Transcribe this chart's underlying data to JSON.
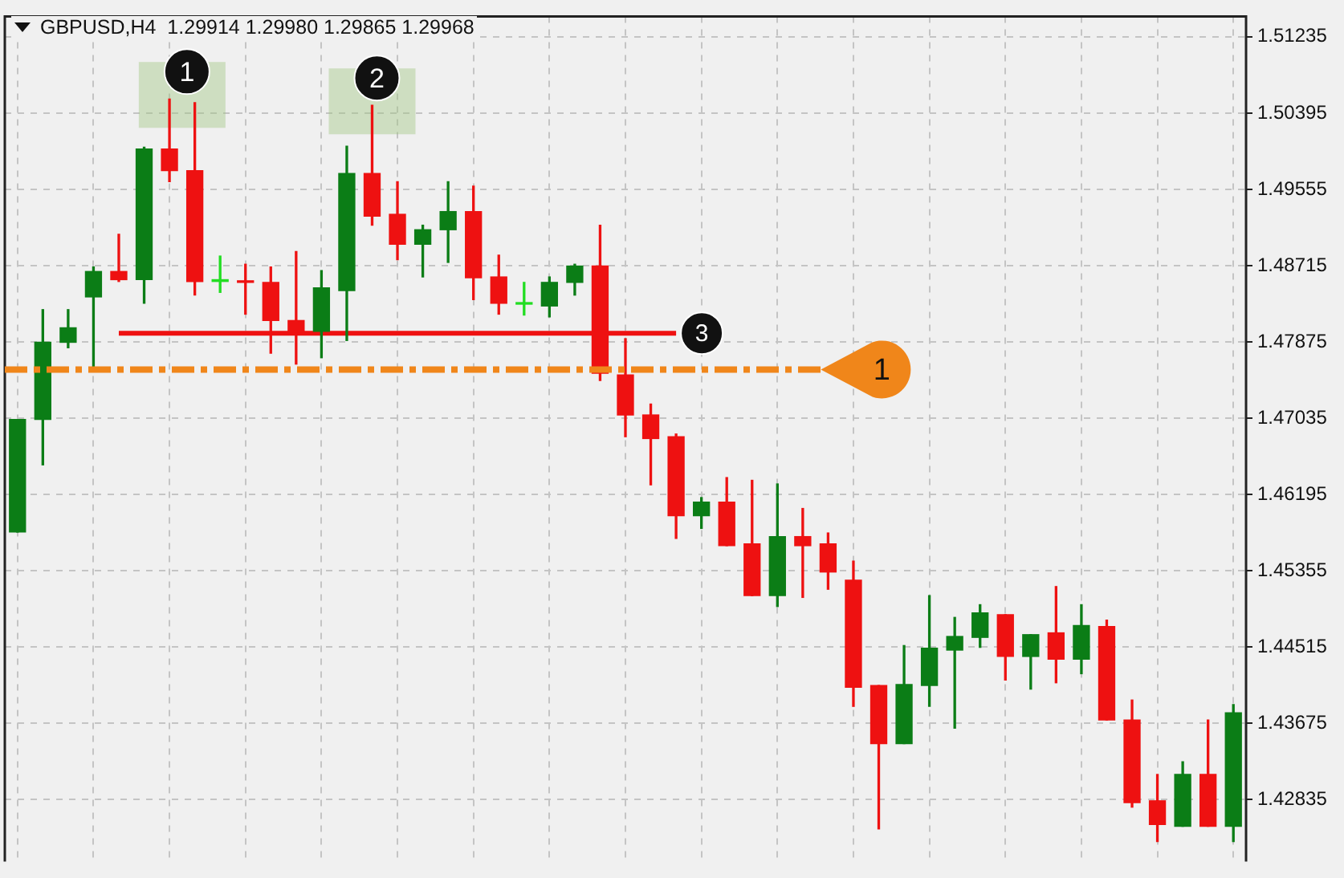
{
  "chart_data": {
    "type": "candlestick",
    "title": "GBPUSD,H4  1.29914 1.29980 1.29865 1.29968",
    "categories": [
      null,
      null,
      null,
      null,
      null,
      null,
      null,
      null,
      null,
      null,
      null,
      null,
      null,
      null,
      null,
      null,
      null,
      null,
      null,
      null,
      null,
      null,
      null,
      null,
      null,
      null,
      null,
      null,
      null,
      null,
      null,
      null,
      null,
      null,
      null,
      null,
      null,
      null,
      null,
      null,
      null,
      null,
      null,
      null,
      null,
      null,
      null,
      null,
      null
    ],
    "ohlc": [
      [
        1.4578,
        1.4702,
        1.4578,
        1.4702
      ],
      [
        1.4702,
        1.4823,
        1.4652,
        1.4787
      ],
      [
        1.4787,
        1.4823,
        1.4781,
        1.4803
      ],
      [
        1.4837,
        1.487,
        1.476,
        1.4865
      ],
      [
        1.4865,
        1.4906,
        1.4854,
        1.4856
      ],
      [
        1.4856,
        1.5002,
        1.483,
        1.5
      ],
      [
        1.5,
        1.5055,
        1.4964,
        1.4976
      ],
      [
        1.4976,
        1.5051,
        1.4839,
        1.4854
      ],
      [
        1.4854,
        1.4882,
        1.4842,
        1.4856
      ],
      [
        1.4854,
        1.4873,
        1.4818,
        1.4853
      ],
      [
        1.4853,
        1.487,
        1.4775,
        1.4811
      ],
      [
        1.4811,
        1.4887,
        1.4763,
        1.4798
      ],
      [
        1.4799,
        1.4866,
        1.477,
        1.4847
      ],
      [
        1.4844,
        1.5003,
        1.4789,
        1.4973
      ],
      [
        1.4973,
        1.5048,
        1.4916,
        1.4926
      ],
      [
        1.4928,
        1.4964,
        1.4878,
        1.4895
      ],
      [
        1.4895,
        1.4916,
        1.4859,
        1.4911
      ],
      [
        1.4911,
        1.4964,
        1.4875,
        1.4931
      ],
      [
        1.4931,
        1.4959,
        1.4834,
        1.4858
      ],
      [
        1.4859,
        1.4883,
        1.4818,
        1.483
      ],
      [
        1.4829,
        1.4853,
        1.4817,
        1.483
      ],
      [
        1.4827,
        1.4859,
        1.4815,
        1.4853
      ],
      [
        1.4853,
        1.4873,
        1.4839,
        1.4871
      ],
      [
        1.4871,
        1.4916,
        1.4745,
        1.4753
      ],
      [
        1.4751,
        1.4791,
        1.4683,
        1.4707
      ],
      [
        1.4707,
        1.4719,
        1.463,
        1.4681
      ],
      [
        1.4683,
        1.4686,
        1.4571,
        1.4596
      ],
      [
        1.4596,
        1.4616,
        1.4582,
        1.4611
      ],
      [
        1.4611,
        1.4638,
        1.4563,
        1.4563
      ],
      [
        1.4565,
        1.4635,
        1.4508,
        1.4508
      ],
      [
        1.4508,
        1.4631,
        1.4496,
        1.4573
      ],
      [
        1.4573,
        1.4604,
        1.4506,
        1.4563
      ],
      [
        1.4565,
        1.4577,
        1.4515,
        1.4534
      ],
      [
        1.4525,
        1.4546,
        1.4386,
        1.4407
      ],
      [
        1.4409,
        1.4409,
        1.4251,
        1.4345
      ],
      [
        1.4345,
        1.4453,
        1.4345,
        1.441
      ],
      [
        1.4409,
        1.4508,
        1.4386,
        1.445
      ],
      [
        1.4448,
        1.4484,
        1.4362,
        1.4463
      ],
      [
        1.4462,
        1.4498,
        1.4451,
        1.4489
      ],
      [
        1.4487,
        1.4487,
        1.4415,
        1.4441
      ],
      [
        1.4441,
        1.4465,
        1.4405,
        1.4465
      ],
      [
        1.4467,
        1.4518,
        1.4412,
        1.4438
      ],
      [
        1.4438,
        1.4498,
        1.4422,
        1.4475
      ],
      [
        1.4474,
        1.4481,
        1.4371,
        1.4371
      ],
      [
        1.4371,
        1.4393,
        1.4275,
        1.428
      ],
      [
        1.4282,
        1.4311,
        1.4237,
        1.4256
      ],
      [
        1.4254,
        1.4325,
        1.4254,
        1.4311
      ],
      [
        1.4311,
        1.4371,
        1.4254,
        1.4254
      ],
      [
        1.4254,
        1.4388,
        1.4237,
        1.4379
      ]
    ],
    "colors": [
      "#0b7d16",
      "#0b7d16",
      "#0b7d16",
      "#0b7d16",
      "#ee1111",
      "#0b7d16",
      "#ee1111",
      "#ee1111",
      "#22dd22",
      "#ee1111",
      "#ee1111",
      "#ee1111",
      "#0b7d16",
      "#0b7d16",
      "#ee1111",
      "#ee1111",
      "#0b7d16",
      "#0b7d16",
      "#ee1111",
      "#ee1111",
      "#22dd22",
      "#0b7d16",
      "#0b7d16",
      "#ee1111",
      "#ee1111",
      "#ee1111",
      "#ee1111",
      "#0b7d16",
      "#ee1111",
      "#ee1111",
      "#0b7d16",
      "#ee1111",
      "#ee1111",
      "#ee1111",
      "#ee1111",
      "#0b7d16",
      "#0b7d16",
      "#0b7d16",
      "#0b7d16",
      "#ee1111",
      "#0b7d16",
      "#ee1111",
      "#0b7d16",
      "#ee1111",
      "#ee1111",
      "#ee1111",
      "#0b7d16",
      "#ee1111",
      "#0b7d16"
    ],
    "series": [
      {
        "type": "line",
        "name": "3",
        "color": "#ee1111",
        "values": [
          null,
          null,
          null,
          null,
          1.4797,
          1.4797,
          1.4797,
          1.4797,
          1.4797,
          1.4797,
          1.4797,
          1.4797,
          1.4797,
          1.4797,
          1.4797,
          1.4797,
          1.4797,
          1.4797,
          1.4797,
          1.4797,
          1.4797,
          1.4797,
          1.4797,
          1.4797,
          1.4797,
          1.4797,
          1.4797,
          null,
          null,
          null,
          null,
          null,
          null,
          null,
          null,
          null,
          null,
          null,
          null,
          null,
          null,
          null,
          null,
          null,
          null,
          null,
          null,
          null,
          null
        ]
      }
    ],
    "ref_lines": [
      {
        "axis": "y",
        "value": 1.4757,
        "label": "1",
        "color": "#f0861a",
        "line_style": "dashed"
      }
    ],
    "annotations": [
      {
        "text": "1",
        "y": 1.5055
      },
      {
        "text": "2",
        "y": 1.5048
      }
    ],
    "ylim": [
      1.4215,
      1.5146
    ],
    "yticks": [
      1.42835,
      1.43675,
      1.44515,
      1.45355,
      1.46195,
      1.47035,
      1.47875,
      1.48715,
      1.49555,
      1.50395,
      1.51235
    ],
    "grid": true,
    "legend": false,
    "tick_labels": "y",
    "marker": "none"
  }
}
